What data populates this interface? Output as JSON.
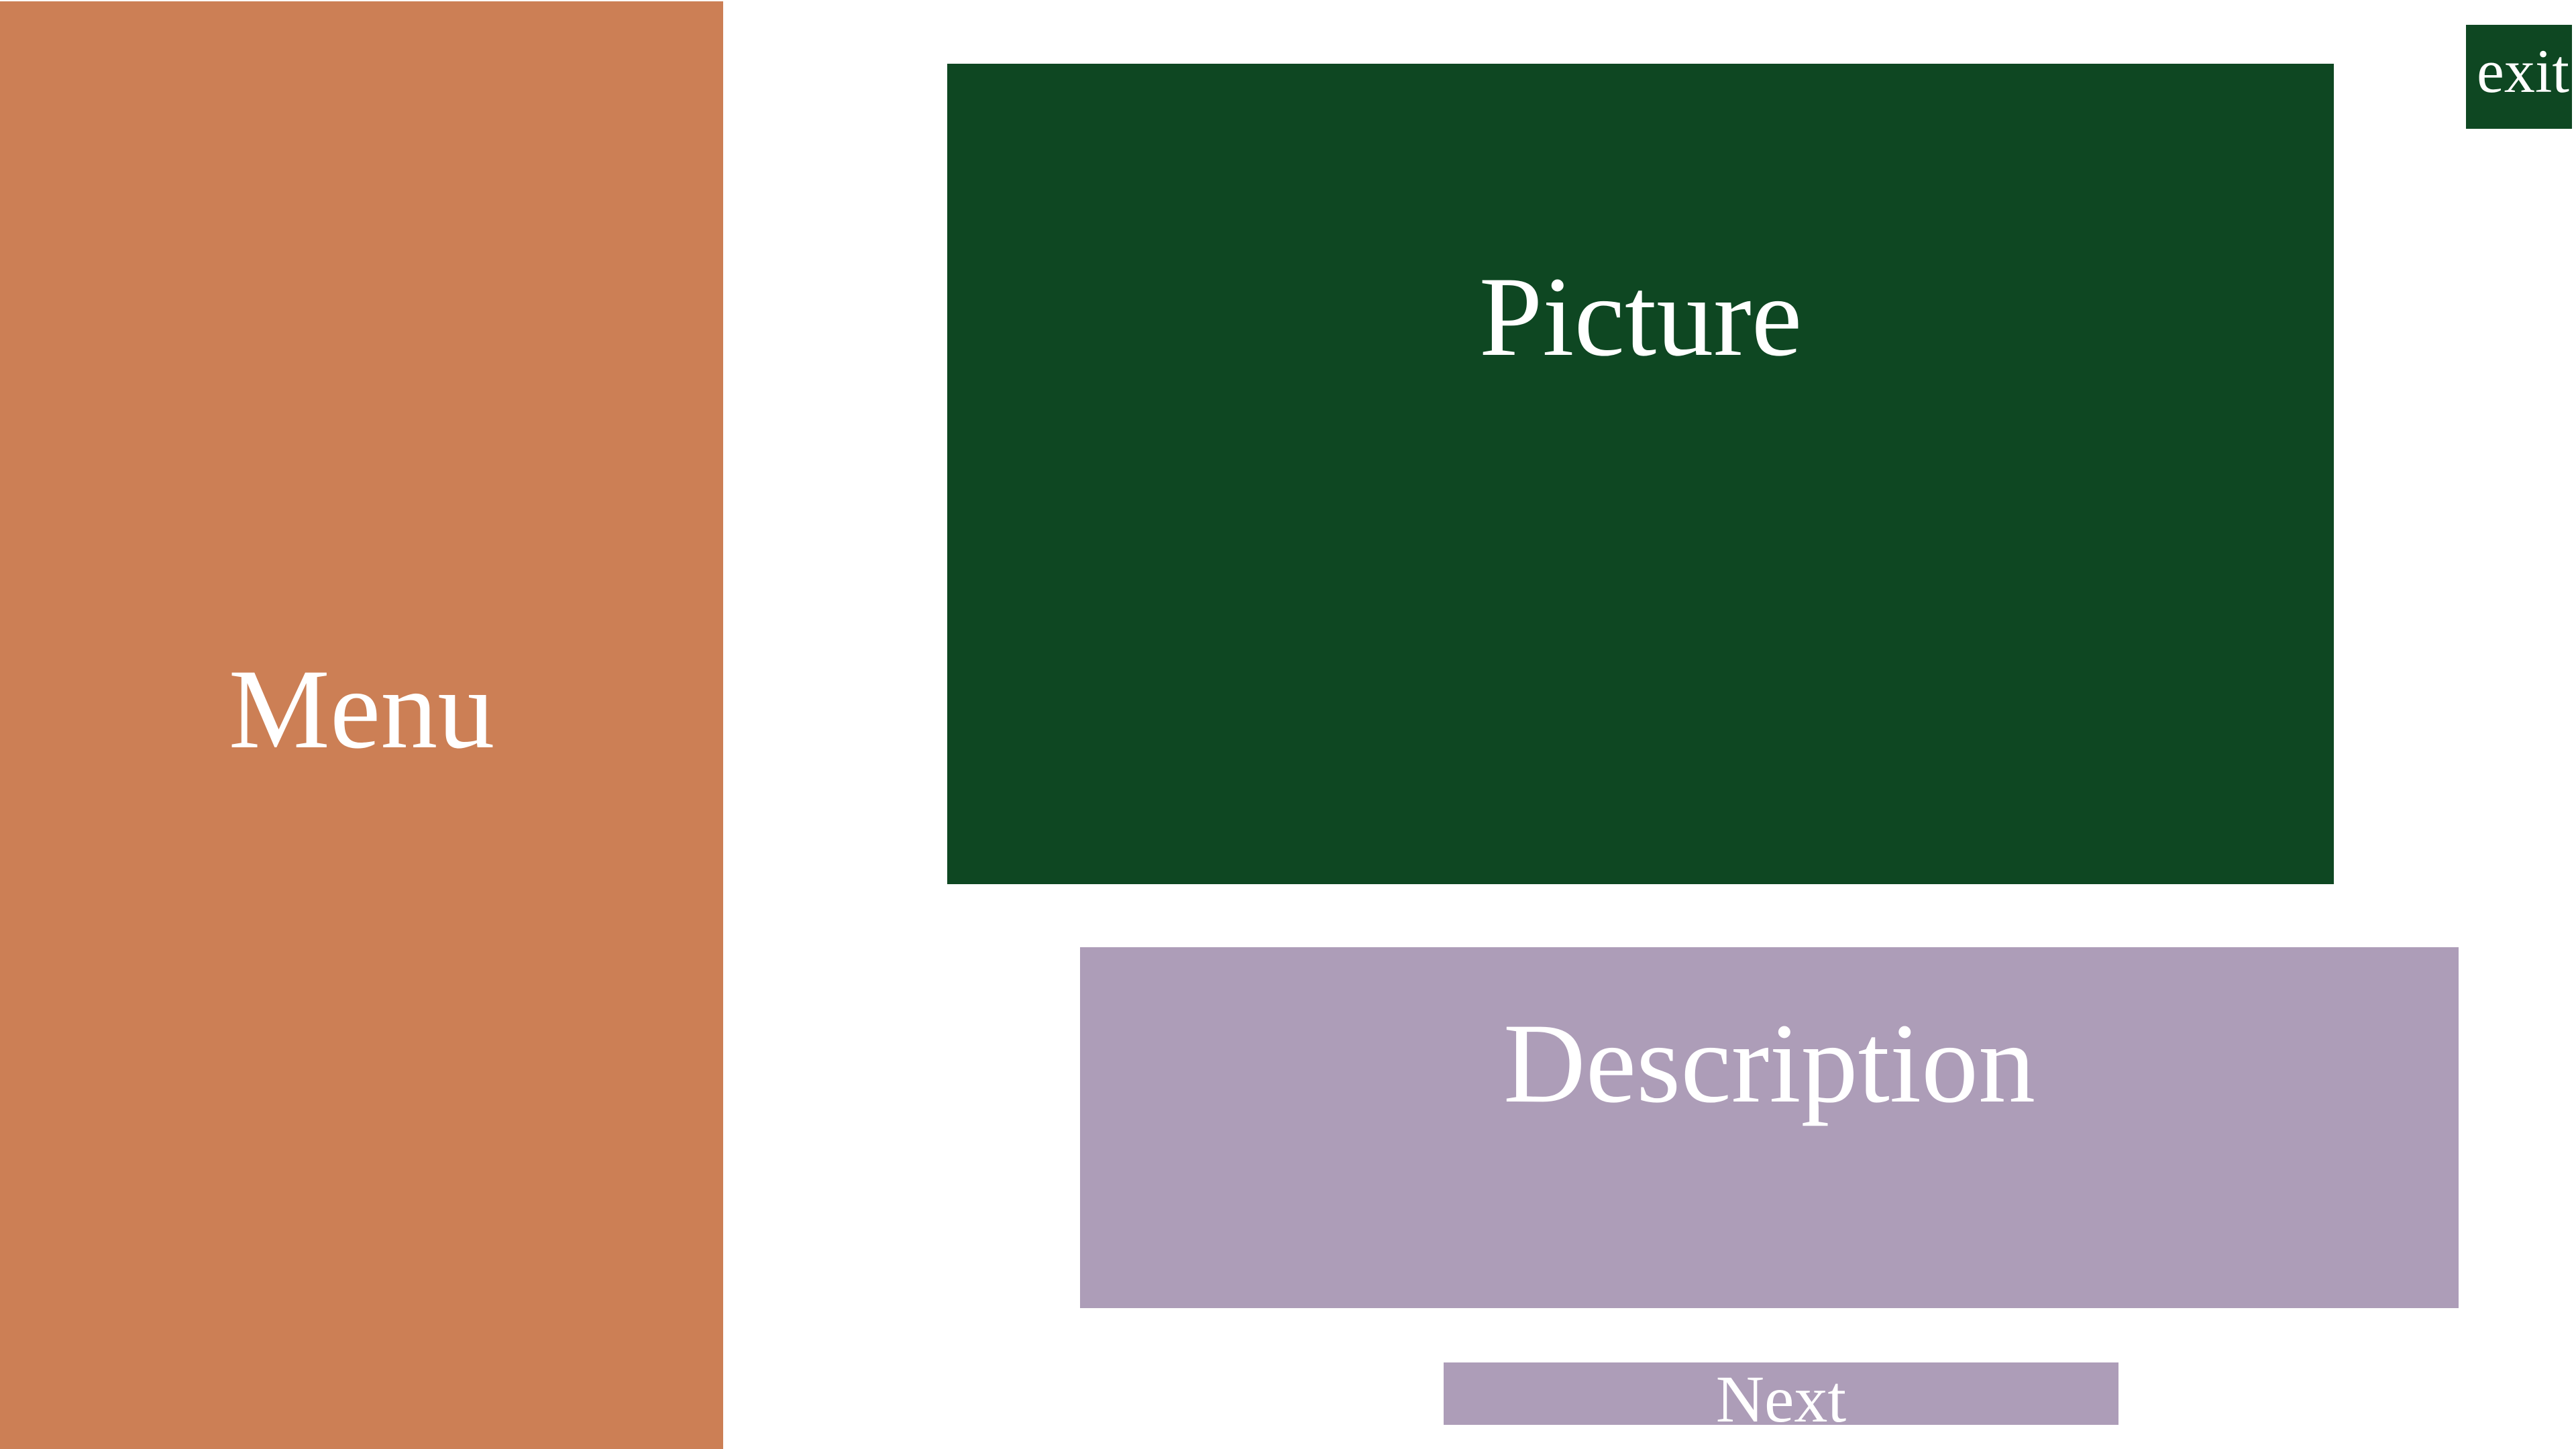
{
  "menu": {
    "label": "Menu"
  },
  "picture": {
    "label": "Picture"
  },
  "description": {
    "label": "Description"
  },
  "next_button": {
    "label": "Next"
  },
  "exit_button": {
    "label": "exit"
  },
  "colors": {
    "menu": "#CC7F55",
    "picture": "#0E4722",
    "description": "#AD9DB8",
    "next": "#AD9DB8",
    "exit": "#0E4722",
    "text": "#FFFFFF",
    "background": "#FFFFFF"
  }
}
